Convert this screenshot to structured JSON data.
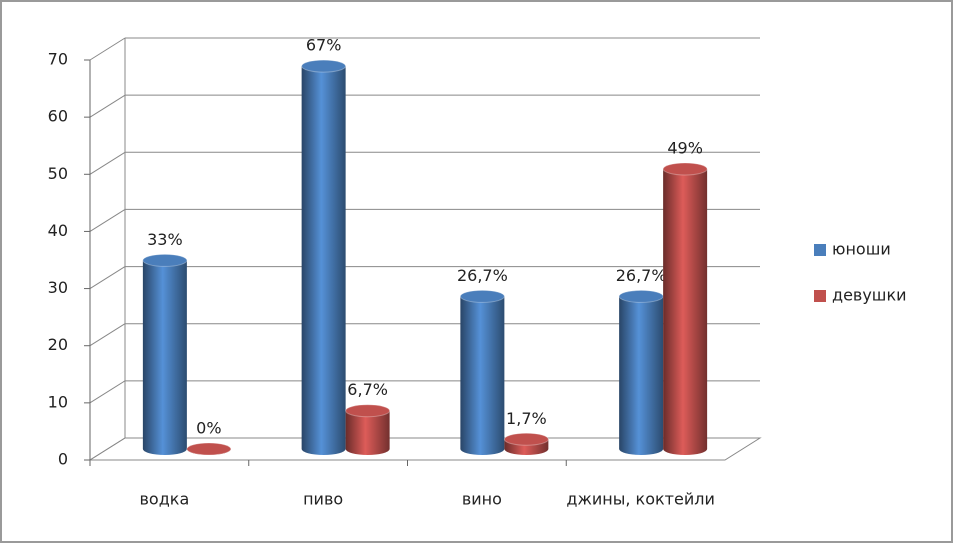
{
  "chart_data": {
    "type": "bar3d",
    "categories": [
      "водка",
      "пиво",
      "вино",
      "джины, коктейли"
    ],
    "series": [
      {
        "name": "юноши",
        "color": "#4a7ebb",
        "values": [
          33,
          67,
          26.7,
          26.7
        ],
        "value_labels": [
          "33%",
          "67%",
          "26,7%",
          "26,7%"
        ]
      },
      {
        "name": "девушки",
        "color": "#c0504d",
        "values": [
          0,
          6.7,
          1.7,
          49
        ],
        "value_labels": [
          "0%",
          "6,7%",
          "1,7%",
          "49%"
        ]
      }
    ],
    "ylim": [
      0,
      70
    ],
    "yticks": [
      0,
      10,
      20,
      30,
      40,
      50,
      60,
      70
    ],
    "grid": true,
    "legend": "right"
  }
}
